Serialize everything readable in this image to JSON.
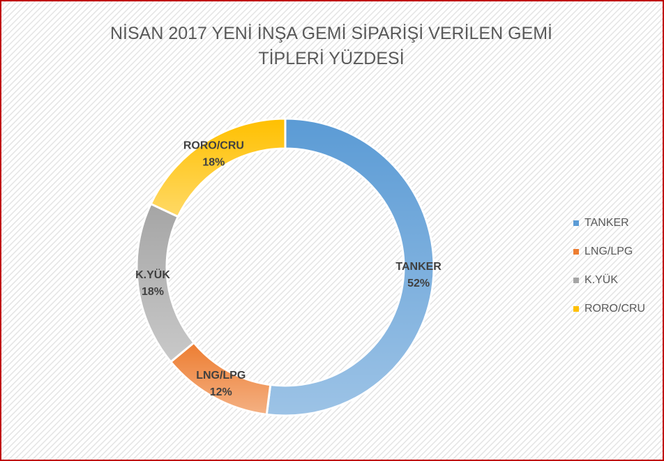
{
  "chart_data": {
    "type": "donut",
    "title": "NİSAN 2017 YENİ İNŞA GEMİ SİPARİŞİ VERİLEN GEMİ TİPLERİ YÜZDESİ",
    "categories": [
      "TANKER",
      "LNG/LPG",
      "K.YÜK",
      "RORO/CRU"
    ],
    "values": [
      52,
      12,
      18,
      18
    ],
    "value_labels": [
      "52%",
      "12%",
      "18%",
      "18%"
    ],
    "colors": [
      "#5b9bd5",
      "#ed7d31",
      "#a5a5a5",
      "#ffc000"
    ],
    "legend": "right"
  }
}
